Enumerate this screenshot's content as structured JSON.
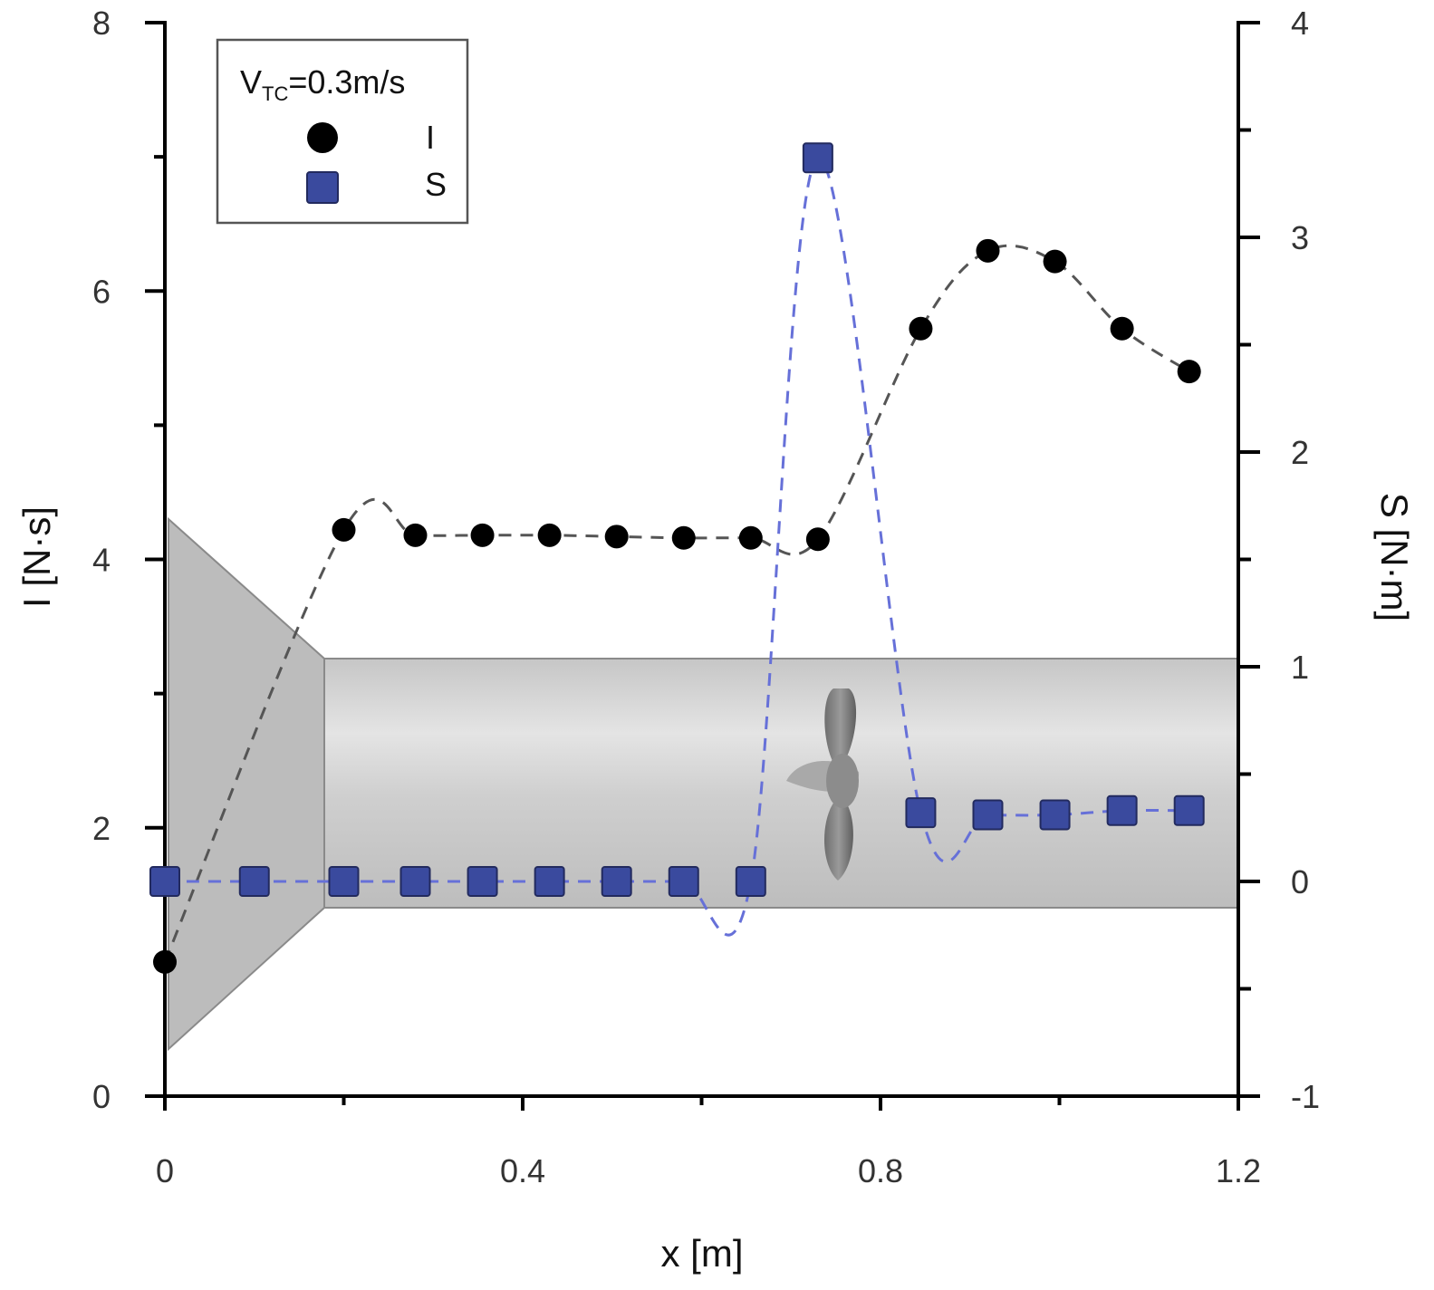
{
  "chart_data": {
    "type": "scatter",
    "title": "",
    "xlabel": "x [m]",
    "ylabel_left": "I [N·s]",
    "ylabel_right": "S [N·m]",
    "xlim": [
      0,
      1.2
    ],
    "ylim_left": [
      0,
      8
    ],
    "ylim_right": [
      -1,
      4
    ],
    "x_ticks": [
      0,
      0.4,
      0.8,
      1.2
    ],
    "x_tick_labels": [
      "0",
      "0.4",
      "0.8",
      "1.2"
    ],
    "y_left_ticks": [
      0,
      2,
      4,
      6,
      8
    ],
    "y_left_tick_labels": [
      "0",
      "2",
      "4",
      "6",
      "8"
    ],
    "y_right_ticks": [
      -1,
      0,
      1,
      2,
      3,
      4
    ],
    "y_right_tick_labels": [
      "-1",
      "0",
      "1",
      "2",
      "3",
      "4"
    ],
    "grid": false,
    "legend": {
      "placement": "top-left",
      "title_main": "V",
      "title_sub": "TC",
      "title_rest": "=0.3m/s",
      "entries": [
        "I",
        "S"
      ]
    },
    "series": [
      {
        "name": "I",
        "axis": "left",
        "marker": "circle",
        "color": "#000000",
        "line_color": "#555555",
        "x": [
          0.0,
          0.2,
          0.28,
          0.355,
          0.43,
          0.505,
          0.58,
          0.655,
          0.73,
          0.845,
          0.92,
          0.995,
          1.07,
          1.145
        ],
        "y": [
          1.0,
          4.22,
          4.18,
          4.18,
          4.18,
          4.17,
          4.16,
          4.16,
          4.15,
          5.72,
          6.3,
          6.22,
          5.72,
          5.4
        ]
      },
      {
        "name": "S",
        "axis": "right",
        "marker": "square",
        "color": "#3a4a9e",
        "line_color": "#6670d8",
        "x": [
          0.0,
          0.1,
          0.2,
          0.28,
          0.355,
          0.43,
          0.505,
          0.58,
          0.655,
          0.73,
          0.845,
          0.92,
          0.995,
          1.07,
          1.145
        ],
        "y": [
          0.0,
          0.0,
          0.0,
          0.0,
          0.0,
          0.0,
          0.0,
          0.0,
          0.0,
          3.37,
          0.32,
          0.31,
          0.31,
          0.33,
          0.33
        ]
      }
    ],
    "background_illustration": "duct-with-propeller"
  }
}
